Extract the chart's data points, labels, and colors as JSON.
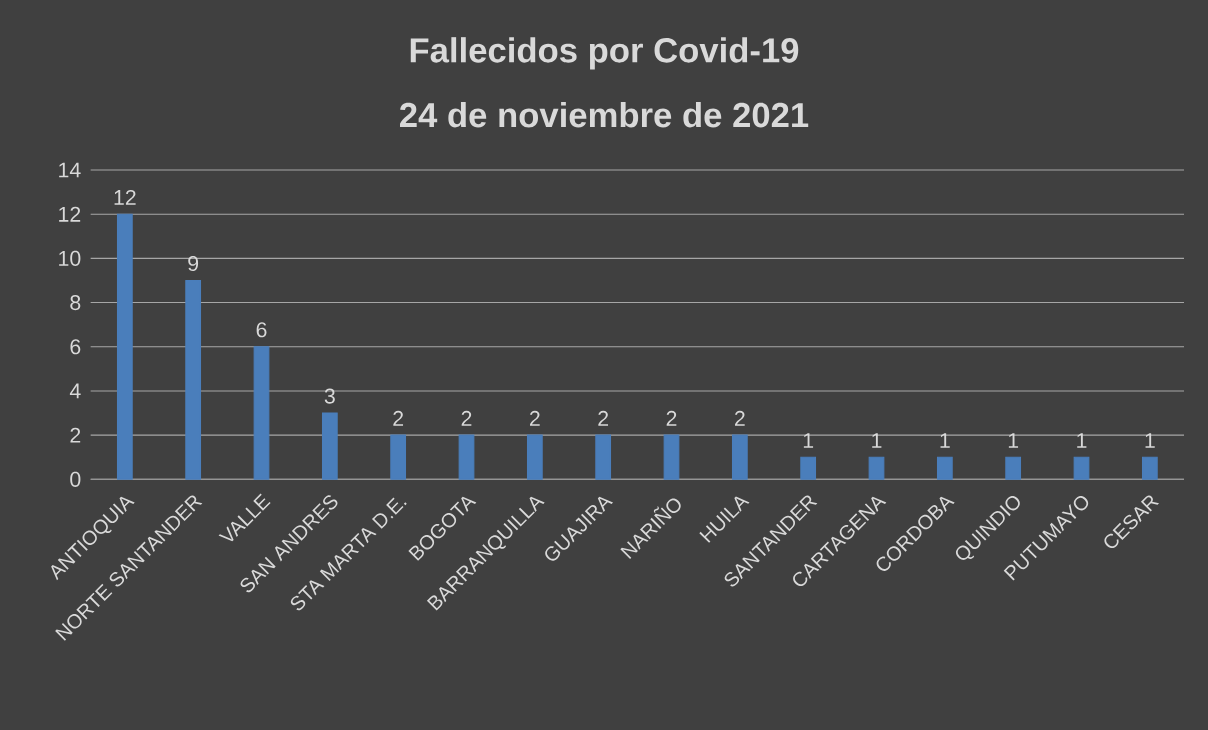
{
  "chart_data": {
    "type": "bar",
    "title": "Fallecidos por Covid-19",
    "subtitle": "24 de noviembre de 2021",
    "categories": [
      "ANTIOQUIA",
      "NORTE SANTANDER",
      "VALLE",
      "SAN ANDRES",
      "STA MARTA D.E.",
      "BOGOTA",
      "BARRANQUILLA",
      "GUAJIRA",
      "NARIÑO",
      "HUILA",
      "SANTANDER",
      "CARTAGENA",
      "CORDOBA",
      "QUINDIO",
      "PUTUMAYO",
      "CESAR"
    ],
    "values": [
      12,
      9,
      6,
      3,
      2,
      2,
      2,
      2,
      2,
      2,
      1,
      1,
      1,
      1,
      1,
      1
    ],
    "color": "#4a7ebb",
    "ylim": [
      0,
      14
    ],
    "yticks": [
      0,
      2,
      4,
      6,
      8,
      10,
      12,
      14
    ],
    "grid": "y",
    "data_labels": true
  }
}
